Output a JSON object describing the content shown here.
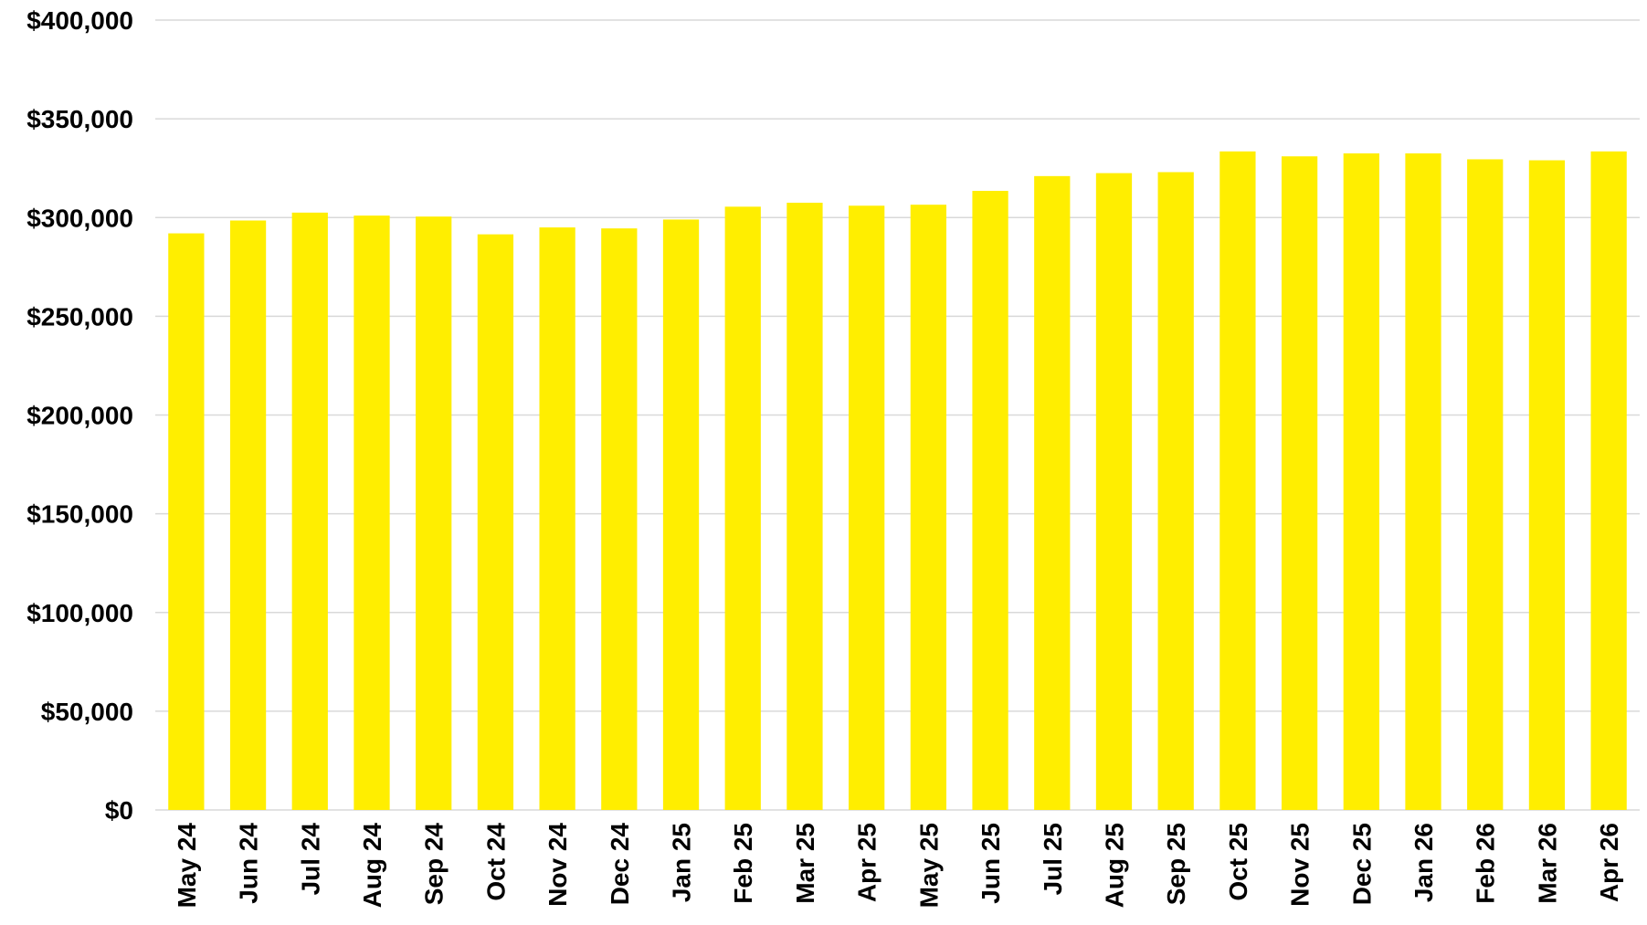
{
  "chart_data": {
    "type": "bar",
    "title": "",
    "xlabel": "",
    "ylabel": "",
    "categories": [
      "May 24",
      "Jun 24",
      "Jul 24",
      "Aug 24",
      "Sep 24",
      "Oct 24",
      "Nov 24",
      "Dec 24",
      "Jan 25",
      "Feb 25",
      "Mar 25",
      "Apr 25",
      "May 25",
      "Jun 25",
      "Jul 25",
      "Aug 25",
      "Sep 25",
      "Oct 25",
      "Nov 25",
      "Dec 25",
      "Jan 26",
      "Feb 26",
      "Mar 26",
      "Apr 26"
    ],
    "values": [
      292000,
      298500,
      302500,
      301000,
      300500,
      291500,
      295000,
      294500,
      299000,
      305500,
      307500,
      306000,
      306500,
      313500,
      321000,
      322500,
      323000,
      333500,
      331000,
      332500,
      332500,
      329500,
      329000,
      333500
    ],
    "ylim": [
      0,
      400000
    ],
    "yticks": [
      0,
      50000,
      100000,
      150000,
      200000,
      250000,
      300000,
      350000,
      400000
    ],
    "ytick_labels": [
      "$0",
      "$50,000",
      "$100,000",
      "$150,000",
      "$200,000",
      "$250,000",
      "$300,000",
      "$350,000",
      "$400,000"
    ],
    "grid": true,
    "legend": "none",
    "bar_color": "#ffee00"
  }
}
